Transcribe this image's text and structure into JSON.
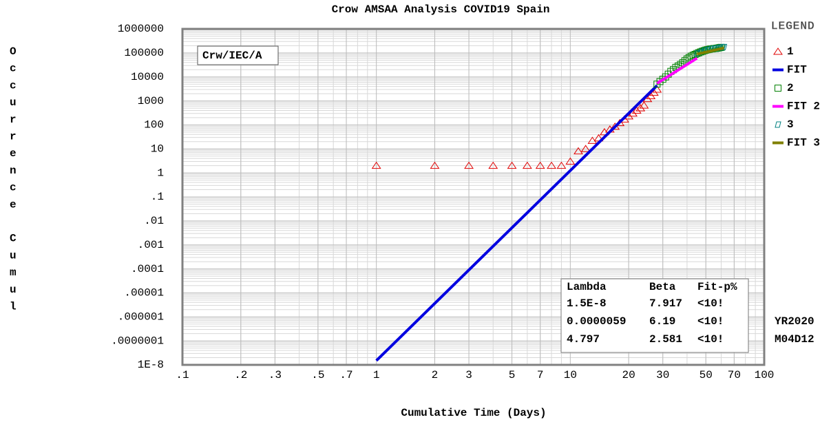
{
  "chart_data": {
    "type": "scatter",
    "title": "Crow AMSAA Analysis COVID19 Spain",
    "xlabel": "Cumulative Time (Days)",
    "ylabel": "Occurrence Cumul",
    "log_x": true,
    "log_y": true,
    "grid": true,
    "xlim": [
      0.1,
      100
    ],
    "ylim": [
      1e-08,
      1000000
    ],
    "xticks": [
      {
        "value": 0.1,
        "label": ".1"
      },
      {
        "value": 0.2,
        "label": ".2"
      },
      {
        "value": 0.3,
        "label": ".3"
      },
      {
        "value": 0.5,
        "label": ".5"
      },
      {
        "value": 0.7,
        "label": ".7"
      },
      1,
      2,
      3,
      5,
      7,
      10,
      20,
      30,
      50,
      70,
      100
    ],
    "yticks": [
      {
        "value": 1e-08,
        "label": "1E-8"
      },
      {
        "value": 1e-07,
        "label": ".0000001"
      },
      {
        "value": 1e-06,
        "label": ".000001"
      },
      {
        "value": 1e-05,
        "label": ".00001"
      },
      {
        "value": 0.0001,
        "label": ".0001"
      },
      {
        "value": 0.001,
        "label": ".001"
      },
      {
        "value": 0.01,
        "label": ".01"
      },
      {
        "value": 0.1,
        "label": ".1"
      },
      1,
      10,
      100,
      1000,
      10000,
      100000,
      1000000
    ],
    "legend_title": "LEGEND",
    "legend": "right",
    "annotation": "Crw/IEC/A",
    "date_labels": [
      "YR2020",
      "M04D12"
    ],
    "series": [
      {
        "name": "1",
        "color": "#e00000",
        "marker": "triangle",
        "x": [
          1,
          2,
          3,
          4,
          5,
          6,
          7,
          8,
          9,
          10,
          11,
          12,
          13,
          14,
          15,
          16,
          17,
          18,
          19,
          20,
          21,
          22,
          23,
          24,
          25,
          26,
          27,
          28
        ],
        "values": [
          2,
          2,
          2,
          2,
          2,
          2,
          2,
          2,
          2,
          3,
          8,
          10,
          22,
          28,
          50,
          65,
          85,
          120,
          170,
          230,
          300,
          400,
          500,
          650,
          1200,
          1600,
          2200,
          3000
        ]
      },
      {
        "name": "FIT",
        "color": "#0000e0",
        "marker": "line",
        "x": [
          1,
          28
        ],
        "values": [
          1.5e-08,
          4350
        ]
      },
      {
        "name": "2",
        "color": "#008000",
        "marker": "square",
        "x": [
          28,
          29,
          30,
          31,
          32,
          33,
          34,
          35,
          36,
          37,
          38,
          39,
          40,
          41,
          42,
          43,
          44,
          45,
          46,
          47,
          48,
          49,
          50,
          51,
          52,
          53,
          54,
          55,
          56,
          57,
          58,
          59,
          60
        ],
        "values": [
          5000,
          6400,
          8000,
          10000,
          13000,
          17000,
          20000,
          25000,
          28500,
          33000,
          39000,
          47000,
          56000,
          64000,
          73000,
          80000,
          87000,
          95000,
          102000,
          110000,
          117000,
          124000,
          131000,
          136000,
          141000,
          146000,
          148000,
          152000,
          153000,
          157000,
          161000,
          166000,
          170000
        ]
      },
      {
        "name": "FIT 2",
        "color": "#ff00ff",
        "marker": "line",
        "x": [
          28,
          45
        ],
        "values": [
          5370,
          60000
        ]
      },
      {
        "name": "3",
        "color": "#008080",
        "marker": "diamond",
        "x": [
          45,
          47,
          49,
          51,
          53,
          55,
          57,
          59,
          61,
          62
        ],
        "values": [
          95000,
          110000,
          124000,
          136000,
          146000,
          152000,
          157000,
          166000,
          172000,
          175000
        ]
      },
      {
        "name": "FIT 3",
        "color": "#808000",
        "marker": "line",
        "x": [
          45,
          62
        ],
        "values": [
          88700,
          160000
        ]
      }
    ],
    "stats": {
      "headers": [
        "Lambda",
        "Beta",
        "Fit-p%"
      ],
      "rows": [
        [
          "1.5E-8",
          "7.917",
          "<10!"
        ],
        [
          "0.0000059",
          "6.19",
          "<10!"
        ],
        [
          "4.797",
          "2.581",
          "<10!"
        ]
      ],
      "row_colors": [
        "#e00000",
        "#008000",
        "#008080"
      ]
    }
  }
}
